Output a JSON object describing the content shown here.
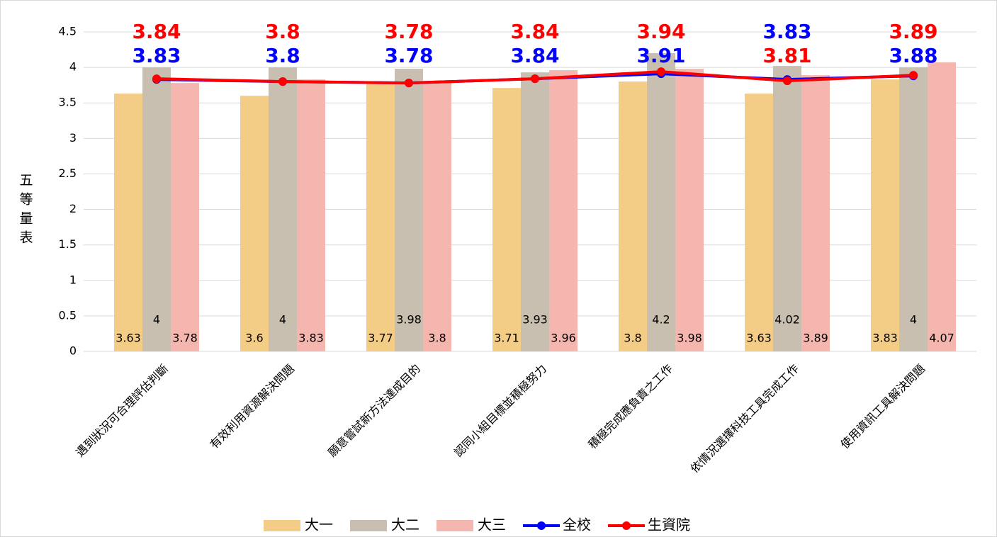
{
  "chart_data": {
    "type": "bar_line",
    "y_label": "五等量表",
    "categories": [
      "遇到狀況可合理評估判斷",
      "有效利用資源解決問題",
      "願意嘗試新方法達成目的",
      "認同小組目標並積極努力",
      "積極完成應負責之工作",
      "依情況選擇科技工具完成工作",
      "使用資訊工具解決問題"
    ],
    "series": [
      {
        "name": "大一",
        "kind": "bar",
        "color": "#F3CD85",
        "values": [
          3.63,
          3.6,
          3.77,
          3.71,
          3.8,
          3.63,
          3.83
        ]
      },
      {
        "name": "大二",
        "kind": "bar",
        "color": "#C8BFB0",
        "values": [
          4,
          4,
          3.98,
          3.93,
          4.2,
          4.02,
          4
        ]
      },
      {
        "name": "大三",
        "kind": "bar",
        "color": "#F4B6AE",
        "values": [
          3.78,
          3.83,
          3.8,
          3.96,
          3.98,
          3.89,
          4.07
        ]
      },
      {
        "name": "全校",
        "kind": "line",
        "color": "#0000FF",
        "values": [
          3.83,
          3.8,
          3.78,
          3.84,
          3.91,
          3.83,
          3.88
        ]
      },
      {
        "name": "生資院",
        "kind": "line",
        "color": "#FF0000",
        "values": [
          3.84,
          3.8,
          3.78,
          3.84,
          3.94,
          3.81,
          3.89
        ]
      }
    ],
    "ylim": [
      0,
      4.5
    ],
    "yticks": [
      0,
      0.5,
      1,
      1.5,
      2,
      2.5,
      3,
      3.5,
      4,
      4.5
    ],
    "grid": true,
    "legend": "bottom"
  }
}
